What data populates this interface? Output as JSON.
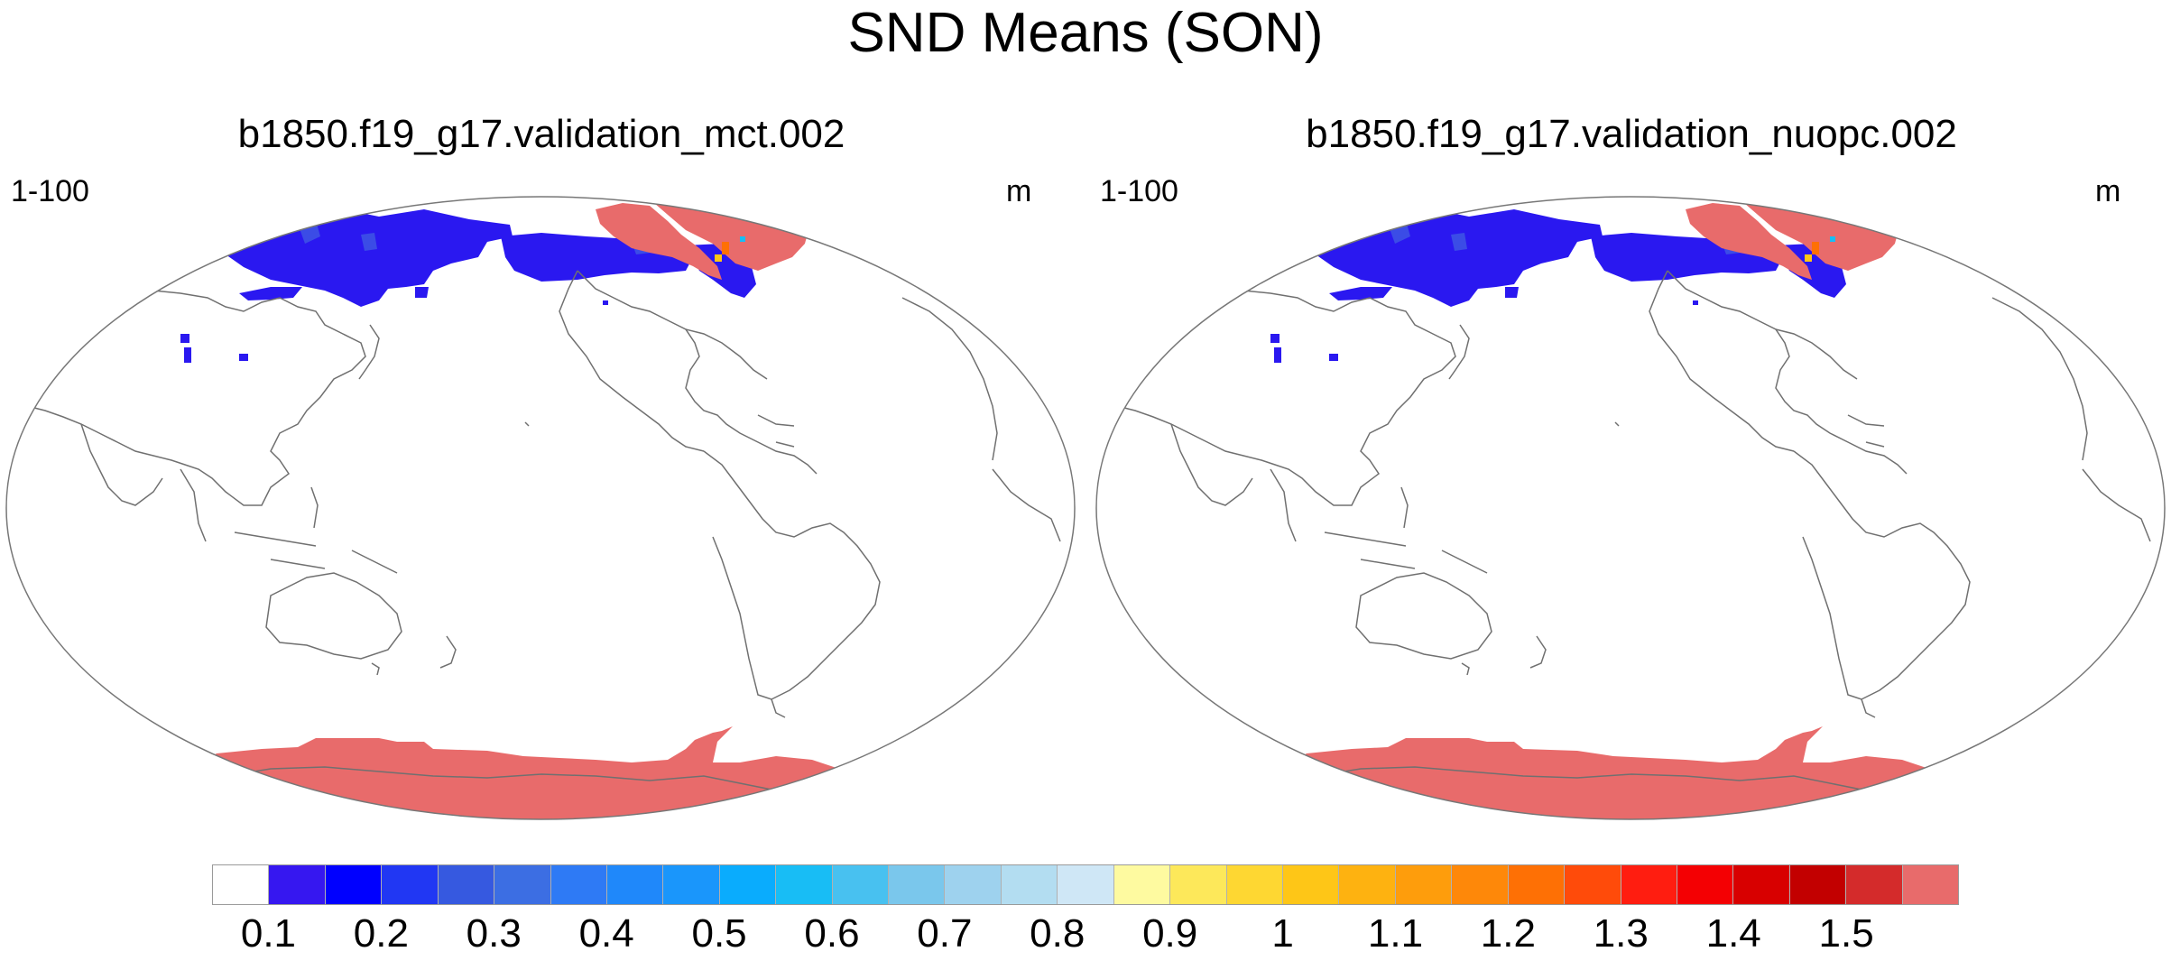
{
  "title": "SND Means (SON)",
  "panels": [
    {
      "title": "b1850.f19_g17.validation_mct.002",
      "left_label": "1-100",
      "right_label": "m"
    },
    {
      "title": "b1850.f19_g17.validation_nuopc.002",
      "left_label": "1-100",
      "right_label": "m"
    }
  ],
  "colorbar": {
    "colors": [
      "#ffffff",
      "#3617f0",
      "#0000ff",
      "#2137f3",
      "#3659e0",
      "#3c6ee3",
      "#2e7af5",
      "#1f88fa",
      "#1a96fb",
      "#0aacfd",
      "#18bdf5",
      "#48c1f0",
      "#7ac7ec",
      "#9ed2ee",
      "#b3ddf1",
      "#cfe7f6",
      "#fefaa0",
      "#fde85a",
      "#fed732",
      "#fec617",
      "#feb210",
      "#fe9d0c",
      "#fe8809",
      "#fe7005",
      "#ff4b0a",
      "#ff1d10",
      "#f40003",
      "#d80000",
      "#c20000",
      "#d42b2b",
      "#e86b6b"
    ],
    "labels": [
      "0.1",
      "0.2",
      "0.3",
      "0.4",
      "0.5",
      "0.6",
      "0.7",
      "0.8",
      "0.9",
      "1",
      "1.1",
      "1.2",
      "1.3",
      "1.4",
      "1.5"
    ]
  },
  "map_colors": {
    "snow_blue": "#2a18f0",
    "snow_blue_light": "#3b4ce6",
    "snow_red": "#e86b6b",
    "coast": "#707070",
    "border": "#777777"
  }
}
